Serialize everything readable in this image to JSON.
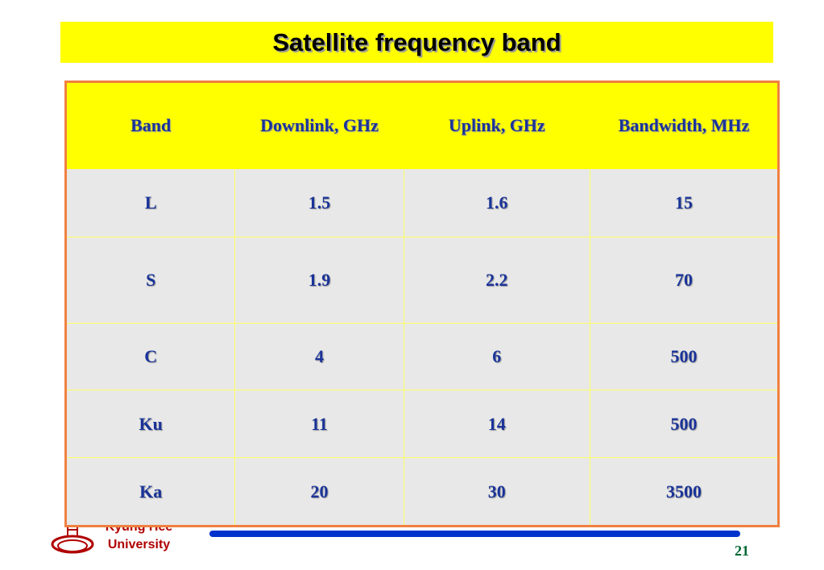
{
  "header": {
    "title": "Satellite frequency band"
  },
  "table": {
    "columns": [
      "Band",
      "Downlink, GHz",
      "Uplink, GHz",
      "Bandwidth, MHz"
    ],
    "rows": [
      [
        "L",
        "1.5",
        "1.6",
        "15"
      ],
      [
        "S",
        "1.9",
        "2.2",
        "70"
      ],
      [
        "C",
        "4",
        "6",
        "500"
      ],
      [
        "Ku",
        "11",
        "14",
        "500"
      ],
      [
        "Ka",
        "20",
        "30",
        "3500"
      ]
    ]
  },
  "footer": {
    "institution": [
      "Kyung Hee",
      "University"
    ],
    "page_number": "21"
  }
}
